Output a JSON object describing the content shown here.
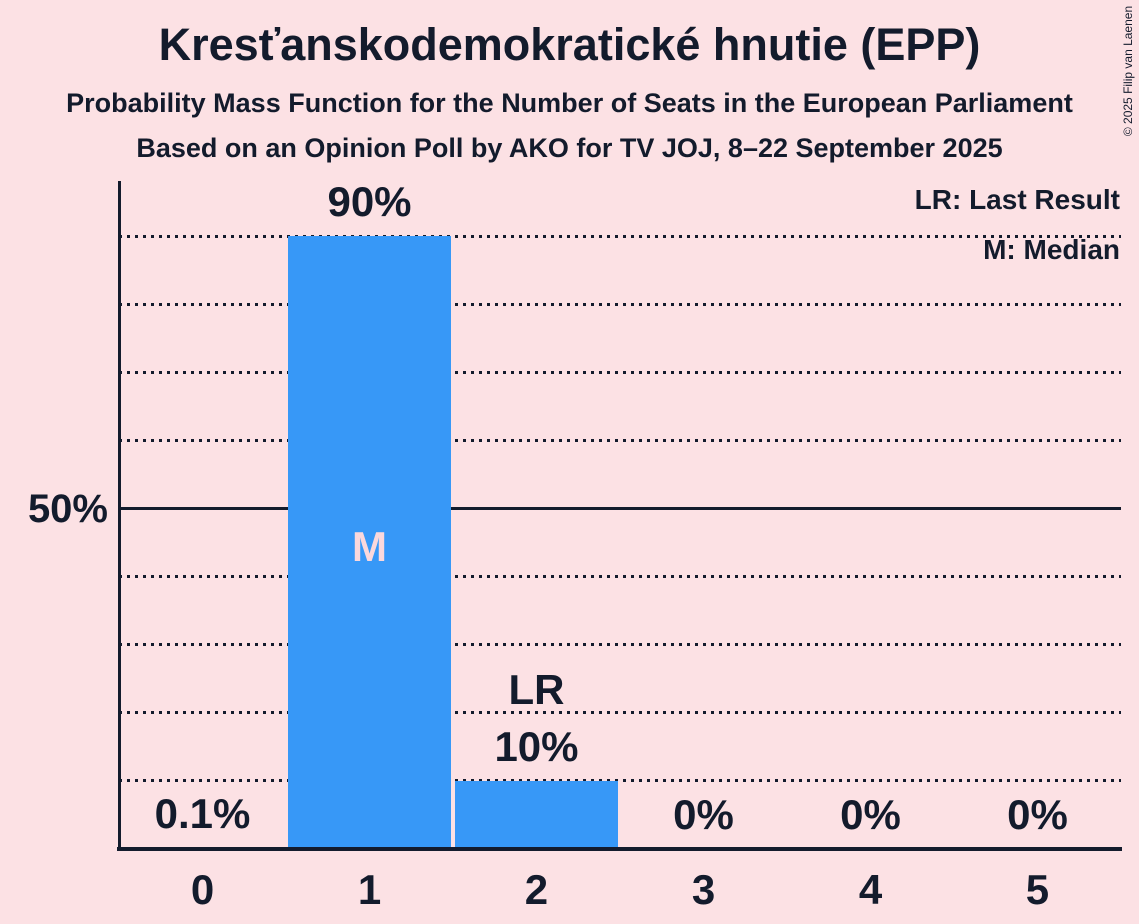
{
  "title": "Kresťanskodemokratické hnutie (EPP)",
  "subtitle1": "Probability Mass Function for the Number of Seats in the European Parliament",
  "subtitle2": "Based on an Opinion Poll by AKO for TV JOJ, 8–22 September 2025",
  "copyright": "© 2025 Filip van Laenen",
  "legend": {
    "last_result": "LR: Last Result",
    "median": "M: Median"
  },
  "annotations": {
    "median_bar": "M",
    "last_result_bar": "LR"
  },
  "y_axis": {
    "tick_label": "50%",
    "tick_value": 50
  },
  "colors": {
    "background": "#fce1e4",
    "bar": "#3798f7",
    "text": "#131b2c",
    "bar_annotation": "#fbd8dc"
  },
  "chart_data": {
    "type": "bar",
    "title": "Kresťanskodemokratické hnutie (EPP)",
    "subtitle": "Probability Mass Function for the Number of Seats in the European Parliament",
    "source_line": "Based on an Opinion Poll by AKO for TV JOJ, 8–22 September 2025",
    "categories": [
      "0",
      "1",
      "2",
      "3",
      "4",
      "5"
    ],
    "values": [
      0.1,
      90,
      10,
      0,
      0,
      0
    ],
    "value_labels": [
      "0.1%",
      "90%",
      "10%",
      "0%",
      "0%",
      "0%"
    ],
    "xlabel": "",
    "ylabel": "",
    "ylim": [
      0,
      98
    ],
    "gridlines": [
      10,
      20,
      30,
      40,
      50,
      60,
      70,
      80,
      90
    ],
    "solid_gridline_at": 50,
    "y_tick_labels": [
      "50%"
    ],
    "median_index": 1,
    "last_result_index": 2,
    "legend_position": "top-right",
    "grid": "horizontal dotted, solid at 50%"
  }
}
